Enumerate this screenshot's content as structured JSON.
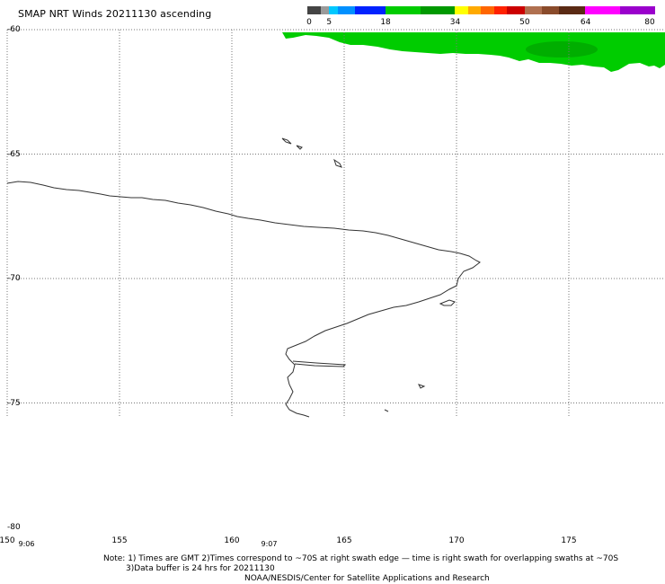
{
  "title": "SMAP NRT Winds 20211130 ascending",
  "colorbar": {
    "tick_labels": [
      "0",
      "5",
      "18",
      "34",
      "50",
      "64",
      "80"
    ],
    "tick_values": [
      0,
      5,
      18,
      34,
      50,
      64,
      80
    ],
    "range": [
      0,
      80
    ],
    "segments": [
      {
        "from": 0,
        "to": 3,
        "color": "#444444"
      },
      {
        "from": 3,
        "to": 5,
        "color": "#9a9a9a"
      },
      {
        "from": 5,
        "to": 7,
        "color": "#00c8ff"
      },
      {
        "from": 7,
        "to": 11,
        "color": "#0090ff"
      },
      {
        "from": 11,
        "to": 18,
        "color": "#0022ff"
      },
      {
        "from": 18,
        "to": 26,
        "color": "#00cc00"
      },
      {
        "from": 26,
        "to": 34,
        "color": "#009900"
      },
      {
        "from": 34,
        "to": 37,
        "color": "#ffff00"
      },
      {
        "from": 37,
        "to": 40,
        "color": "#ffaa00"
      },
      {
        "from": 40,
        "to": 43,
        "color": "#ff6600"
      },
      {
        "from": 43,
        "to": 46,
        "color": "#ff2200"
      },
      {
        "from": 46,
        "to": 50,
        "color": "#cc0000"
      },
      {
        "from": 50,
        "to": 54,
        "color": "#b07050"
      },
      {
        "from": 54,
        "to": 58,
        "color": "#8a4b2b"
      },
      {
        "from": 58,
        "to": 64,
        "color": "#5a2a14"
      },
      {
        "from": 64,
        "to": 72,
        "color": "#ff00ff"
      },
      {
        "from": 72,
        "to": 80,
        "color": "#9a00cc"
      }
    ]
  },
  "map": {
    "lon_range": [
      150,
      180
    ],
    "lat_range": [
      -60,
      -80
    ],
    "lon_ticks": [
      150,
      155,
      160,
      165,
      170,
      175
    ],
    "lon_labels": [
      "150",
      "155",
      "160",
      "165",
      "170",
      "175"
    ],
    "lat_ticks": [
      -60,
      -65,
      -70,
      -75,
      -80
    ],
    "lat_labels": [
      "-60",
      "-65",
      "-70",
      "-75",
      "-80"
    ],
    "grid": true,
    "swath_color": "#00cc00",
    "coastline_color": "#333333"
  },
  "time_labels": [
    {
      "text": "9:06",
      "lon": 150.5
    },
    {
      "text": "9:07",
      "lon": 161.3
    }
  ],
  "notes": {
    "line1": "Note: 1) Times are GMT 2)Times correspond to ~70S at right swath edge — time is right swath for overlapping swaths at ~70S",
    "line2": "3)Data buffer is 24 hrs for 20211130",
    "line3": "NOAA/NESDIS/Center for Satellite Applications and Research"
  }
}
